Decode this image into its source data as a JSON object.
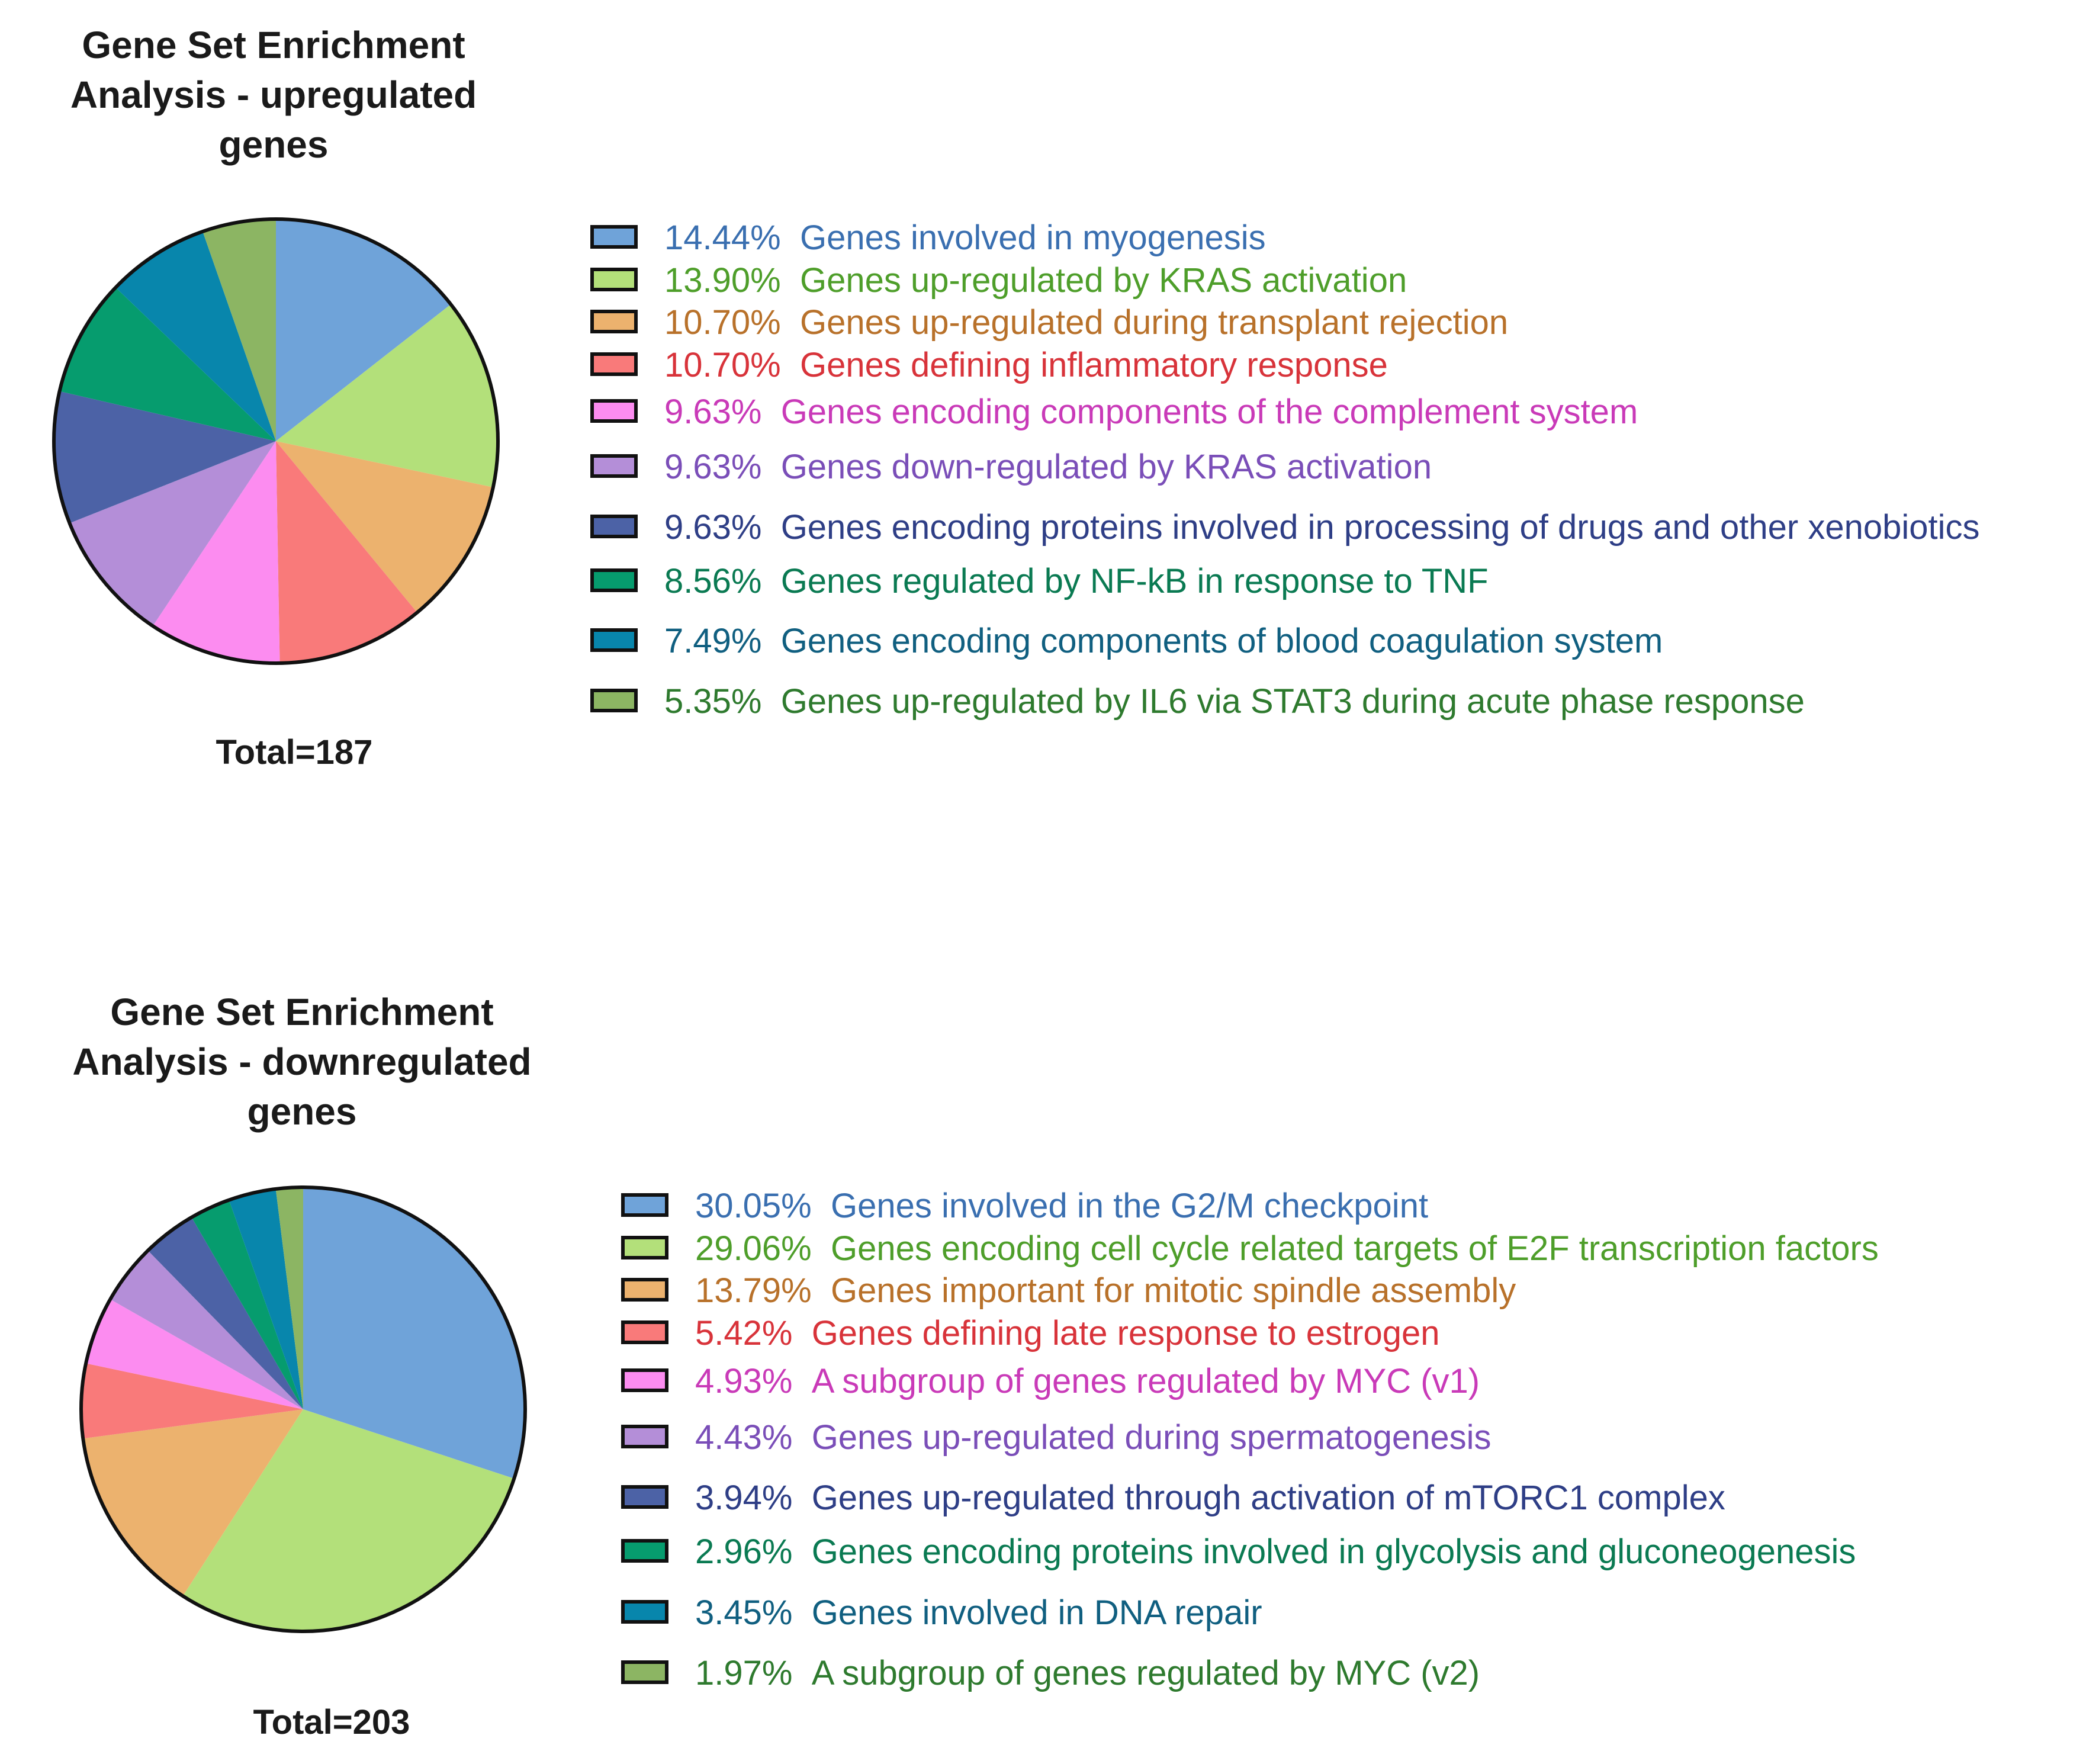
{
  "chart_data": [
    {
      "type": "pie",
      "title_lines": [
        "Gene Set Enrichment",
        "Analysis - upregulated",
        "genes"
      ],
      "total_label": "Total=187",
      "legend_position": "right",
      "slices": [
        {
          "pct_label": "14.44%",
          "value": 14.44,
          "label": "Genes involved in myogenesis",
          "color": "#6fa3d9",
          "text_color": "#3a6fb0"
        },
        {
          "pct_label": "13.90%",
          "value": 13.9,
          "label": "Genes up-regulated by KRAS activation",
          "color": "#b3e07a",
          "text_color": "#4e9e2a"
        },
        {
          "pct_label": "10.70%",
          "value": 10.7,
          "label": "Genes up-regulated during transplant rejection",
          "color": "#ecb26e",
          "text_color": "#b8712a"
        },
        {
          "pct_label": "10.70%",
          "value": 10.7,
          "label": "Genes defining inflammatory response",
          "color": "#f97a7a",
          "text_color": "#d8333a"
        },
        {
          "pct_label": "9.63%",
          "value": 9.63,
          "label": "Genes encoding components of the complement system",
          "color": "#fc8cf0",
          "text_color": "#c93ab8"
        },
        {
          "pct_label": "9.63%",
          "value": 9.63,
          "label": "Genes down-regulated by KRAS activation",
          "color": "#b48ed8",
          "text_color": "#7a4eb8"
        },
        {
          "pct_label": "9.63%",
          "value": 9.63,
          "label": "Genes encoding proteins involved in processing of drugs and other xenobiotics",
          "color": "#4c62a6",
          "text_color": "#2e3e86"
        },
        {
          "pct_label": "8.56%",
          "value": 8.56,
          "label": "Genes regulated by NF-kB in response to TNF",
          "color": "#069c6e",
          "text_color": "#0a7a52"
        },
        {
          "pct_label": "7.49%",
          "value": 7.49,
          "label": "Genes encoding components of blood coagulation system",
          "color": "#0886ac",
          "text_color": "#105f80"
        },
        {
          "pct_label": "5.35%",
          "value": 5.35,
          "label": "Genes up-regulated by IL6  via STAT3 during acute phase response",
          "color": "#8cb563",
          "text_color": "#2e7a2e"
        }
      ]
    },
    {
      "type": "pie",
      "title_lines": [
        "Gene Set Enrichment",
        "Analysis - downregulated",
        "genes"
      ],
      "total_label": "Total=203",
      "legend_position": "right",
      "slices": [
        {
          "pct_label": "30.05%",
          "value": 30.05,
          "label": "Genes involved in the G2/M checkpoint",
          "color": "#6fa3d9",
          "text_color": "#3a6fb0"
        },
        {
          "pct_label": "29.06%",
          "value": 29.06,
          "label": "Genes encoding cell cycle related targets of E2F transcription factors",
          "color": "#b3e07a",
          "text_color": "#4e9e2a"
        },
        {
          "pct_label": "13.79%",
          "value": 13.79,
          "label": "Genes important for mitotic spindle assembly",
          "color": "#ecb26e",
          "text_color": "#b8712a"
        },
        {
          "pct_label": "5.42%",
          "value": 5.42,
          "label": "Genes defining late response to estrogen",
          "color": "#f97a7a",
          "text_color": "#d8333a"
        },
        {
          "pct_label": "4.93%",
          "value": 4.93,
          "label": "A subgroup of genes regulated by MYC (v1)",
          "color": "#fc8cf0",
          "text_color": "#c93ab8"
        },
        {
          "pct_label": "4.43%",
          "value": 4.43,
          "label": "Genes up-regulated during spermatogenesis",
          "color": "#b48ed8",
          "text_color": "#7a4eb8"
        },
        {
          "pct_label": "3.94%",
          "value": 3.94,
          "label": "Genes up-regulated through activation of mTORC1 complex",
          "color": "#4c62a6",
          "text_color": "#2e3e86"
        },
        {
          "pct_label": "2.96%",
          "value": 2.96,
          "label": "Genes encoding proteins involved in glycolysis and gluconeogenesis",
          "color": "#069c6e",
          "text_color": "#0a7a52"
        },
        {
          "pct_label": "3.45%",
          "value": 3.45,
          "label": "Genes involved in DNA repair",
          "color": "#0886ac",
          "text_color": "#105f80"
        },
        {
          "pct_label": "1.97%",
          "value": 1.97,
          "label": "A subgroup of genes regulated by MYC (v2)",
          "color": "#8cb563",
          "text_color": "#2e7a2e"
        }
      ]
    }
  ]
}
